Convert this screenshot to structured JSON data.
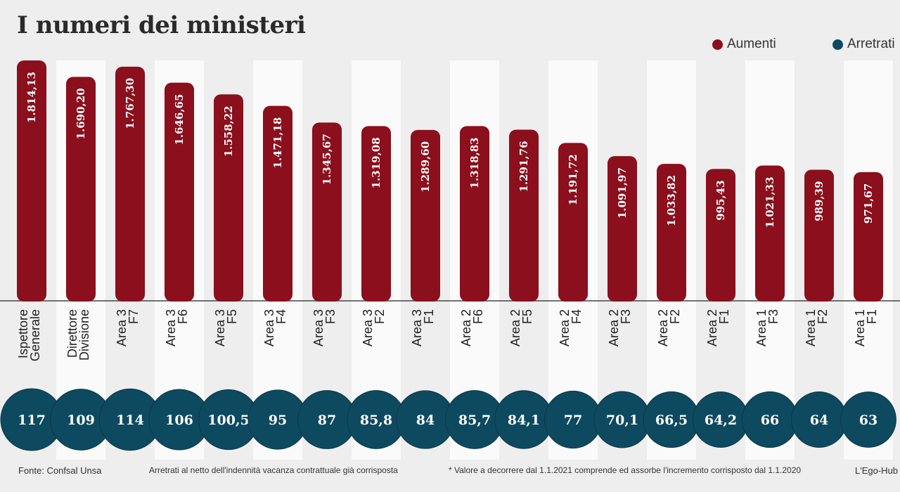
{
  "header": {
    "title": "I numeri dei ministeri"
  },
  "legend": [
    {
      "label": "Aumenti",
      "color": "#8b0f1c"
    },
    {
      "label": "Arretrati",
      "color": "#0e4a5f"
    }
  ],
  "footer": {
    "source": "Fonte: Confsal Unsa",
    "note1": "Arretrati al netto dell'indennità vacanza contrattuale già corrisposta",
    "note2": "* Valore a decorrere dal 1.1.2021 comprende ed assorbe l'incremento corrisposto dal 1.1.2020",
    "credit": "L'Ego-Hub"
  },
  "chart_data": {
    "type": "bar",
    "title": "I numeri dei ministeri",
    "categories": [
      [
        "Ispettore",
        "Generale"
      ],
      [
        "Direttore",
        "Divisione"
      ],
      [
        "Area 3",
        "F7"
      ],
      [
        "Area 3",
        "F6"
      ],
      [
        "Area 3",
        "F5"
      ],
      [
        "Area 3",
        "F4"
      ],
      [
        "Area 3",
        "F3"
      ],
      [
        "Area 3",
        "F2"
      ],
      [
        "Area 3",
        "F1"
      ],
      [
        "Area 2",
        "F6"
      ],
      [
        "Area 2",
        "F5"
      ],
      [
        "Area 2",
        "F4"
      ],
      [
        "Area 2",
        "F3"
      ],
      [
        "Area 2",
        "F2"
      ],
      [
        "Area 2",
        "F1"
      ],
      [
        "Area 1",
        "F3"
      ],
      [
        "Area 1",
        "F2"
      ],
      [
        "Area 1",
        "F1"
      ]
    ],
    "series": [
      {
        "name": "Aumenti",
        "color": "#8b0f1c",
        "values": [
          1814.13,
          1690.2,
          1767.3,
          1646.65,
          1558.22,
          1471.18,
          1345.67,
          1319.08,
          1289.6,
          1318.83,
          1291.76,
          1191.72,
          1091.97,
          1033.82,
          995.43,
          1021.33,
          989.39,
          971.67
        ],
        "labels": [
          "1.814,13",
          "1.690,20",
          "1.767,30",
          "1.646,65",
          "1.558,22",
          "1.471,18",
          "1.345,67",
          "1.319,08",
          "1.289,60",
          "1.318,83",
          "1.291,76",
          "1.191,72",
          "1.091,97",
          "1.033,82",
          "995,43",
          "1.021,33",
          "989,39",
          "971,67"
        ]
      },
      {
        "name": "Arretrati",
        "color": "#0e4a5f",
        "values": [
          117,
          109,
          114,
          106,
          100.5,
          95,
          87,
          85.8,
          84,
          85.7,
          84.1,
          77,
          70.1,
          66.5,
          64.2,
          66,
          64,
          63
        ],
        "labels": [
          "117",
          "109",
          "114",
          "106",
          "100,5",
          "95",
          "87",
          "85,8",
          "84",
          "85,7",
          "84,1",
          "77",
          "70,1",
          "66,5",
          "64,2",
          "66",
          "64",
          "63"
        ]
      }
    ],
    "stripe_colors": [
      "#eeeeee",
      "#fafafa"
    ],
    "legend_position": "top-right"
  }
}
